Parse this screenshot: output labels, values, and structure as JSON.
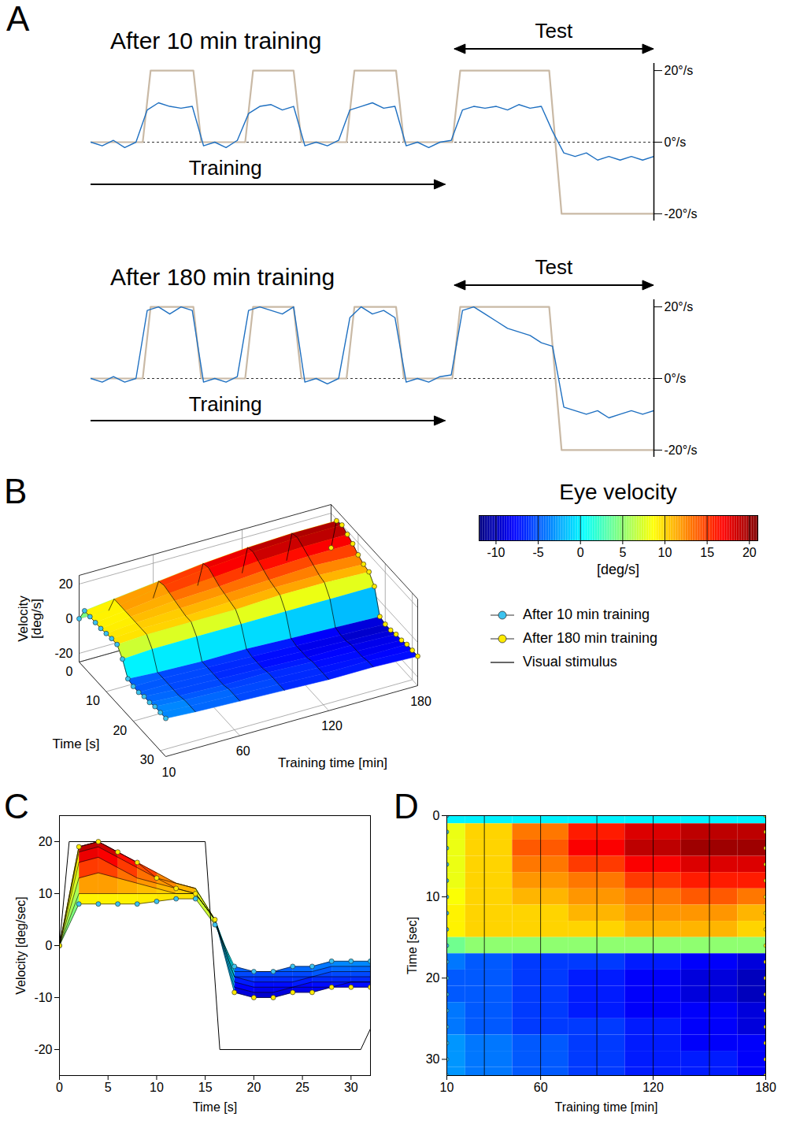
{
  "chart_data": [
    {
      "panel": "A",
      "type": "line",
      "subplots": [
        {
          "title": "After 10 min training",
          "test_label": "Test",
          "training_label": "Training",
          "test_span": [
            64.6,
            100
          ],
          "training_span": [
            0,
            63
          ],
          "xlim": [
            0,
            100
          ],
          "ylim": [
            -22,
            22
          ],
          "tick_labels": "y",
          "baseline": 0,
          "yticks": [
            {
              "value": 20,
              "label": "20°/s"
            },
            {
              "value": 0,
              "label": "0°/s"
            },
            {
              "value": -20,
              "label": "-20°/s"
            }
          ],
          "series": [
            {
              "color": "#c9b9a5",
              "line_style": "solid",
              "x": [
                0,
                9.2,
                10.6,
                18.2,
                19.6,
                27.4,
                28.8,
                36,
                37.4,
                45.4,
                46.8,
                54.2,
                55.6,
                64.2,
                65.6,
                81.4,
                83.6,
                100
              ],
              "values": [
                0,
                0,
                20,
                20,
                0,
                0,
                20,
                20,
                0,
                0,
                20,
                20,
                0,
                0,
                20,
                20,
                -20,
                -20
              ]
            },
            {
              "color": "#1f70c1",
              "line_style": "solid",
              "x": [
                0,
                2,
                4,
                6,
                8,
                10,
                12,
                14,
                16,
                18,
                20,
                22,
                24,
                26,
                28,
                30,
                32,
                34,
                36,
                38,
                40,
                42,
                44,
                46,
                48,
                50,
                52,
                54,
                56,
                58,
                60,
                62,
                64,
                66,
                68,
                70,
                72,
                74,
                76,
                78,
                80,
                82,
                84,
                86,
                88,
                90,
                92,
                94,
                96,
                98,
                100
              ],
              "values": [
                0,
                -1,
                0.5,
                -1.5,
                0,
                9,
                11,
                10,
                9.5,
                10,
                -1,
                0,
                -1.5,
                0.5,
                8,
                10,
                10.5,
                9,
                10,
                -1,
                0,
                -1,
                0.5,
                9,
                10,
                11,
                9.5,
                10,
                -1,
                0,
                -1.5,
                0,
                0.5,
                9,
                10,
                9.5,
                10,
                9,
                10.5,
                9.5,
                10,
                3,
                -3,
                -4,
                -3,
                -5,
                -4,
                -5,
                -4,
                -5,
                -4
              ]
            }
          ]
        },
        {
          "title": "After 180 min training",
          "test_label": "Test",
          "training_label": "Training",
          "test_span": [
            64.6,
            100
          ],
          "training_span": [
            0,
            63
          ],
          "xlim": [
            0,
            100
          ],
          "ylim": [
            -22,
            22
          ],
          "tick_labels": "y",
          "baseline": 0,
          "yticks": [
            {
              "value": 20,
              "label": "20°/s"
            },
            {
              "value": 0,
              "label": "0°/s"
            },
            {
              "value": -20,
              "label": "-20°/s"
            }
          ],
          "series": [
            {
              "color": "#c9b9a5",
              "line_style": "solid",
              "x": [
                0,
                9.2,
                10.6,
                18.2,
                19.6,
                27.4,
                28.8,
                36,
                37.4,
                45.4,
                46.8,
                54.2,
                55.6,
                64.2,
                65.6,
                81.4,
                83.6,
                100
              ],
              "values": [
                0,
                0,
                20,
                20,
                0,
                0,
                20,
                20,
                0,
                0,
                20,
                20,
                0,
                0,
                20,
                20,
                -20,
                -20
              ]
            },
            {
              "color": "#1f70c1",
              "line_style": "solid",
              "x": [
                0,
                2,
                4,
                6,
                8,
                10,
                12,
                14,
                16,
                18,
                20,
                22,
                24,
                26,
                28,
                30,
                32,
                34,
                36,
                38,
                40,
                42,
                44,
                46,
                48,
                50,
                52,
                54,
                56,
                58,
                60,
                62,
                64,
                66,
                68,
                70,
                72,
                74,
                76,
                78,
                80,
                82,
                84,
                86,
                88,
                90,
                92,
                94,
                96,
                98,
                100
              ],
              "values": [
                0,
                -1,
                0.5,
                -1,
                0,
                19,
                20,
                18,
                20,
                19,
                -1,
                0,
                -1,
                0.5,
                19,
                20,
                19,
                18,
                20,
                -1,
                0,
                -1.5,
                0,
                17,
                20,
                18,
                19,
                17,
                -1,
                0,
                -1,
                0.5,
                1,
                19,
                20,
                18,
                16,
                14,
                13,
                12,
                10,
                9,
                -8,
                -9,
                -10,
                -9,
                -11,
                -10,
                -9,
                -10,
                -9
              ]
            }
          ]
        }
      ]
    },
    {
      "panel": "B",
      "type": "surface",
      "grid": true,
      "legend": "right",
      "xlabel": "Time [s]",
      "ylabel": "Training time [min]",
      "zlabel": "Velocity [deg/s]",
      "x": [
        0,
        2,
        4,
        6,
        8,
        10,
        12,
        14,
        16,
        18,
        20,
        22,
        24,
        26,
        28,
        30,
        32
      ],
      "xlim": [
        0,
        32
      ],
      "xticks": [
        0,
        10,
        20,
        30
      ],
      "y": [
        10,
        30,
        60,
        90,
        120,
        150,
        180
      ],
      "ylim": [
        10,
        180
      ],
      "yticks": [
        10,
        60,
        120,
        180
      ],
      "zlim": [
        -25,
        25
      ],
      "zticks": [
        -20,
        0,
        20
      ],
      "values": [
        [
          0,
          8,
          8,
          8,
          8,
          8.5,
          9,
          9,
          4,
          -4,
          -5,
          -5,
          -4,
          -4,
          -3,
          -3,
          -3
        ],
        [
          0,
          10,
          10,
          10,
          10,
          10,
          10,
          10,
          5,
          -5,
          -5,
          -5,
          -5,
          -5,
          -4,
          -4,
          -4
        ],
        [
          0,
          13,
          14,
          13,
          12,
          11,
          10,
          10,
          5,
          -6,
          -6,
          -6,
          -6,
          -6,
          -5,
          -5,
          -5
        ],
        [
          0,
          16,
          17,
          15,
          13,
          12,
          11,
          10,
          5,
          -6,
          -7,
          -7,
          -7,
          -6,
          -6,
          -6,
          -6
        ],
        [
          0,
          18,
          19,
          17,
          15,
          13,
          12,
          11,
          5,
          -7,
          -8,
          -8,
          -8,
          -7,
          -7,
          -7,
          -7
        ],
        [
          0,
          19,
          20,
          18,
          16,
          14,
          12,
          11,
          5,
          -8,
          -9,
          -9,
          -8,
          -8,
          -8,
          -7,
          -7
        ],
        [
          0,
          19,
          20,
          18,
          16,
          13,
          11,
          10,
          5,
          -9,
          -10,
          -10,
          -9,
          -9,
          -8,
          -8,
          -8
        ]
      ],
      "colorbar": {
        "label": "Eye velocity",
        "unit": "[deg/s]",
        "range": [
          -12,
          21
        ],
        "ticks": [
          -10,
          -5,
          0,
          5,
          10,
          15,
          20
        ],
        "colors": [
          "#00007f",
          "#0000ff",
          "#007fff",
          "#00ffff",
          "#7fff7f",
          "#ffff00",
          "#ff7f00",
          "#ff0000",
          "#7f0000"
        ]
      },
      "series": [
        {
          "name": "After 10 min training",
          "color": "#3cc3ef",
          "marker": "circle"
        },
        {
          "name": "After 180 min training",
          "color": "#ffeb00",
          "marker": "circle"
        },
        {
          "name": "Visual stimulus",
          "color": "#000000",
          "line_style": "solid"
        }
      ]
    },
    {
      "panel": "C",
      "type": "line",
      "xlabel": "Time [s]",
      "ylabel": "Velocity [deg/sec]",
      "x": [
        0,
        2,
        4,
        6,
        8,
        10,
        12,
        14,
        16,
        18,
        20,
        22,
        24,
        26,
        28,
        30,
        32
      ],
      "xlim": [
        0,
        32
      ],
      "xticks": [
        0,
        5,
        10,
        15,
        20,
        25,
        30
      ],
      "ylim": [
        -25,
        25
      ],
      "yticks": [
        -20,
        -10,
        0,
        10,
        20
      ],
      "values": [
        [
          0,
          8,
          8,
          8,
          8,
          8.5,
          9,
          9,
          4,
          -4,
          -5,
          -5,
          -4,
          -4,
          -3,
          -3,
          -3
        ],
        [
          0,
          10,
          10,
          10,
          10,
          10,
          10,
          10,
          5,
          -5,
          -5,
          -5,
          -5,
          -5,
          -4,
          -4,
          -4
        ],
        [
          0,
          13,
          14,
          13,
          12,
          11,
          10,
          10,
          5,
          -6,
          -6,
          -6,
          -6,
          -6,
          -5,
          -5,
          -5
        ],
        [
          0,
          16,
          17,
          15,
          13,
          12,
          11,
          10,
          5,
          -6,
          -7,
          -7,
          -7,
          -6,
          -6,
          -6,
          -6
        ],
        [
          0,
          18,
          19,
          17,
          15,
          13,
          12,
          11,
          5,
          -7,
          -8,
          -8,
          -8,
          -7,
          -7,
          -7,
          -7
        ],
        [
          0,
          19,
          20,
          18,
          16,
          14,
          12,
          11,
          5,
          -8,
          -9,
          -9,
          -8,
          -8,
          -8,
          -7,
          -7
        ],
        [
          0,
          19,
          20,
          18,
          16,
          13,
          11,
          10,
          5,
          -9,
          -10,
          -10,
          -9,
          -9,
          -8,
          -8,
          -8
        ]
      ],
      "stimulus": {
        "x": [
          0,
          1,
          15,
          16.5,
          31,
          32
        ],
        "values": [
          0,
          20,
          20,
          -20,
          -20,
          -16
        ]
      }
    },
    {
      "panel": "D",
      "type": "heatmap",
      "xlabel": "Training time [min]",
      "ylabel": "Time [sec]",
      "x": [
        10,
        30,
        60,
        90,
        120,
        150,
        180
      ],
      "xlim": [
        10,
        180
      ],
      "xticks": [
        10,
        60,
        120,
        180
      ],
      "y": [
        0,
        2,
        4,
        6,
        8,
        10,
        12,
        14,
        16,
        18,
        20,
        22,
        24,
        26,
        28,
        30,
        32
      ],
      "ylim": [
        0,
        32
      ],
      "yticks": [
        0,
        10,
        20,
        30
      ],
      "values": [
        [
          0,
          8,
          8,
          8,
          8,
          8.5,
          9,
          9,
          4,
          -4,
          -5,
          -5,
          -4,
          -4,
          -3,
          -3,
          -3
        ],
        [
          0,
          10,
          10,
          10,
          10,
          10,
          10,
          10,
          5,
          -5,
          -5,
          -5,
          -5,
          -5,
          -4,
          -4,
          -4
        ],
        [
          0,
          13,
          14,
          13,
          12,
          11,
          10,
          10,
          5,
          -6,
          -6,
          -6,
          -6,
          -6,
          -5,
          -5,
          -5
        ],
        [
          0,
          16,
          17,
          15,
          13,
          12,
          11,
          10,
          5,
          -6,
          -7,
          -7,
          -7,
          -6,
          -6,
          -6,
          -6
        ],
        [
          0,
          18,
          19,
          17,
          15,
          13,
          12,
          11,
          5,
          -7,
          -8,
          -8,
          -8,
          -7,
          -7,
          -7,
          -7
        ],
        [
          0,
          19,
          20,
          18,
          16,
          14,
          12,
          11,
          5,
          -8,
          -9,
          -9,
          -8,
          -8,
          -8,
          -7,
          -7
        ],
        [
          0,
          19,
          20,
          18,
          16,
          13,
          11,
          10,
          5,
          -9,
          -10,
          -10,
          -9,
          -9,
          -8,
          -8,
          -8
        ]
      ]
    }
  ]
}
